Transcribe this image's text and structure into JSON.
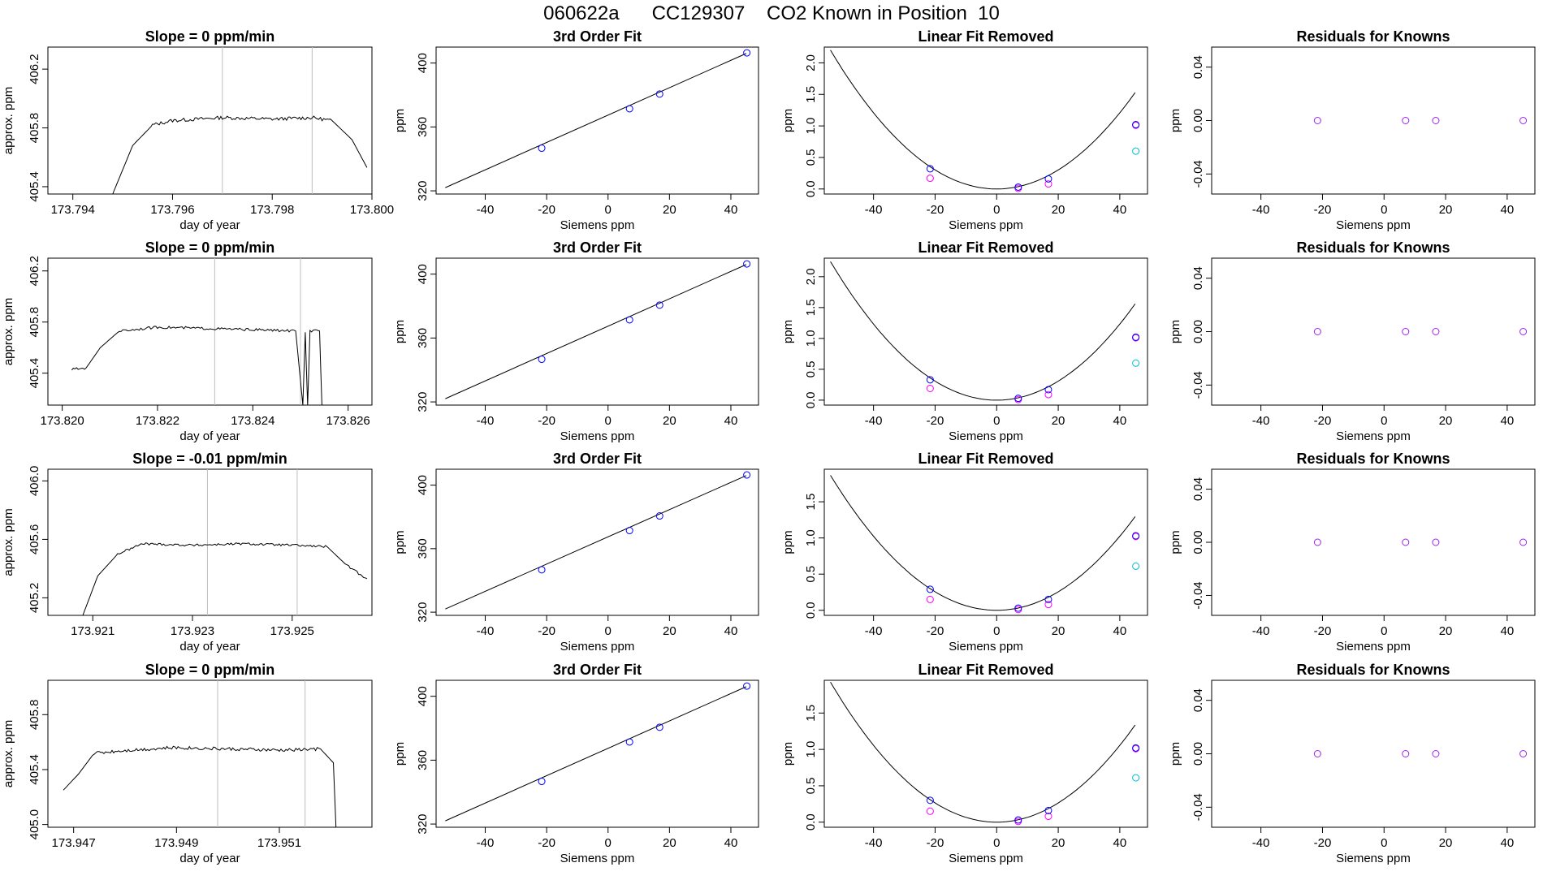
{
  "page": {
    "title": "060622a      CC129307    CO2 Known in Position  10"
  },
  "colors": {
    "line": "#000000",
    "window_line": "#bebebe",
    "fit_point": "#0000ff",
    "known_magenta": "#ff00ff",
    "residual_point": "#a020f0",
    "extra_cyan": "#00bfd8"
  },
  "chart_data": [
    {
      "type": "line",
      "row": 0,
      "col": 0,
      "title": "Slope =  0  ppm/min",
      "xlabel": "day of year",
      "ylabel": "approx. ppm",
      "xlim": [
        173.7935,
        173.8
      ],
      "ylim": [
        405.35,
        406.35
      ],
      "xticks": [
        173.794,
        173.796,
        173.798,
        173.8
      ],
      "xtick_labels": [
        "173.794",
        "173.796",
        "173.798",
        "173.800"
      ],
      "yticks": [
        405.4,
        405.8,
        406.2
      ],
      "ytick_labels": [
        "405.4",
        "405.8",
        "406.2"
      ],
      "vlines": [
        173.797,
        173.7988
      ],
      "trace": [
        [
          173.7948,
          405.35
        ],
        [
          173.7952,
          405.68
        ],
        [
          173.7956,
          405.82
        ],
        [
          173.796,
          405.85
        ],
        [
          173.797,
          405.87
        ],
        [
          173.798,
          405.86
        ],
        [
          173.7988,
          405.87
        ],
        [
          173.7992,
          405.85
        ],
        [
          173.7996,
          405.72
        ],
        [
          173.7999,
          405.53
        ]
      ],
      "noise": 0.012
    },
    {
      "type": "scatter",
      "row": 0,
      "col": 1,
      "title": "3rd Order Fit",
      "xlabel": "Siemens ppm",
      "ylabel": "ppm",
      "xlim": [
        -56,
        49
      ],
      "ylim": [
        318,
        410
      ],
      "xticks": [
        -40,
        -20,
        0,
        20,
        40
      ],
      "xtick_labels": [
        "-40",
        "-20",
        "0",
        "20",
        "40"
      ],
      "yticks": [
        320,
        360,
        400
      ],
      "ytick_labels": [
        "320",
        "360",
        "400"
      ],
      "curve": [
        [
          -53,
          322
        ],
        [
          45,
          406
        ]
      ],
      "points": [
        [
          -21.6,
          346.7
        ],
        [
          7,
          371.4
        ],
        [
          16.8,
          380.6
        ],
        [
          45.2,
          406.4
        ]
      ]
    },
    {
      "type": "scatter",
      "row": 0,
      "col": 2,
      "title": "Linear Fit Removed",
      "xlabel": "Siemens ppm",
      "ylabel": "ppm",
      "xlim": [
        -56,
        49
      ],
      "ylim": [
        -0.08,
        2.25
      ],
      "xticks": [
        -40,
        -20,
        0,
        20,
        40
      ],
      "xtick_labels": [
        "-40",
        "-20",
        "0",
        "20",
        "40"
      ],
      "yticks": [
        0,
        0.5,
        1,
        1.5,
        2
      ],
      "ytick_labels": [
        "0.0",
        "0.5",
        "1.0",
        "1.5",
        "2.0"
      ],
      "curve_coef": [
        0.000755,
        0.0,
        0.0
      ],
      "curve_range": [
        -54,
        45.5
      ],
      "points": [
        [
          -21.6,
          0.32
        ],
        [
          7,
          0.03
        ],
        [
          16.8,
          0.16
        ],
        [
          45.2,
          1.02
        ]
      ],
      "magenta_points": [
        [
          -21.6,
          0.17
        ],
        [
          7,
          0.01
        ],
        [
          16.8,
          0.08
        ],
        [
          45.2,
          1.01
        ]
      ],
      "cyan_points": [
        [
          45.2,
          0.6
        ]
      ]
    },
    {
      "type": "scatter",
      "row": 0,
      "col": 3,
      "title": "Residuals for Knowns",
      "xlabel": "Siemens ppm",
      "ylabel": "ppm",
      "xlim": [
        -56,
        49
      ],
      "ylim": [
        -0.055,
        0.055
      ],
      "xticks": [
        -40,
        -20,
        0,
        20,
        40
      ],
      "xtick_labels": [
        "-40",
        "-20",
        "0",
        "20",
        "40"
      ],
      "yticks": [
        -0.04,
        0,
        0.04
      ],
      "ytick_labels": [
        "-0.04",
        "0.00",
        "0.04"
      ],
      "points": [
        [
          -21.6,
          0
        ],
        [
          7,
          0
        ],
        [
          16.8,
          0
        ],
        [
          45.2,
          0
        ]
      ]
    },
    {
      "type": "line",
      "row": 1,
      "col": 0,
      "title": "Slope =  0  ppm/min",
      "xlabel": "day of year",
      "ylabel": "approx. ppm",
      "xlim": [
        173.8197,
        173.8265
      ],
      "ylim": [
        405.15,
        406.3
      ],
      "xticks": [
        173.82,
        173.822,
        173.824,
        173.826
      ],
      "xtick_labels": [
        "173.820",
        "173.822",
        "173.824",
        "173.826"
      ],
      "yticks": [
        405.4,
        405.8,
        406.2
      ],
      "ytick_labels": [
        "405.4",
        "405.8",
        "406.2"
      ],
      "vlines": [
        173.8232,
        173.825
      ],
      "trace": [
        [
          173.8202,
          405.43
        ],
        [
          173.8205,
          405.44
        ],
        [
          173.8208,
          405.6
        ],
        [
          173.8212,
          405.73
        ],
        [
          173.822,
          405.76
        ],
        [
          173.823,
          405.75
        ],
        [
          173.824,
          405.74
        ],
        [
          173.8249,
          405.73
        ],
        [
          173.82505,
          405.15
        ],
        [
          173.8251,
          405.72
        ],
        [
          173.82515,
          405.15
        ],
        [
          173.8252,
          405.73
        ],
        [
          173.8254,
          405.73
        ],
        [
          173.82545,
          405.15
        ]
      ],
      "noise": 0.01
    },
    {
      "type": "scatter",
      "row": 1,
      "col": 1,
      "title": "3rd Order Fit",
      "xlabel": "Siemens ppm",
      "ylabel": "ppm",
      "xlim": [
        -56,
        49
      ],
      "ylim": [
        318,
        410
      ],
      "xticks": [
        -40,
        -20,
        0,
        20,
        40
      ],
      "xtick_labels": [
        "-40",
        "-20",
        "0",
        "20",
        "40"
      ],
      "yticks": [
        320,
        360,
        400
      ],
      "ytick_labels": [
        "320",
        "360",
        "400"
      ],
      "curve": [
        [
          -53,
          322
        ],
        [
          45,
          406
        ]
      ],
      "points": [
        [
          -21.6,
          346.7
        ],
        [
          7,
          371.4
        ],
        [
          16.8,
          380.6
        ],
        [
          45.2,
          406.4
        ]
      ]
    },
    {
      "type": "scatter",
      "row": 1,
      "col": 2,
      "title": "Linear Fit Removed",
      "xlabel": "Siemens ppm",
      "ylabel": "ppm",
      "xlim": [
        -56,
        49
      ],
      "ylim": [
        -0.08,
        2.3
      ],
      "xticks": [
        -40,
        -20,
        0,
        20,
        40
      ],
      "xtick_labels": [
        "-40",
        "-20",
        "0",
        "20",
        "40"
      ],
      "yticks": [
        0,
        0.5,
        1,
        1.5,
        2
      ],
      "ytick_labels": [
        "0.0",
        "0.5",
        "1.0",
        "1.5",
        "2.0"
      ],
      "curve_coef": [
        0.00077,
        0.0,
        0.0
      ],
      "curve_range": [
        -54,
        45.5
      ],
      "points": [
        [
          -21.6,
          0.33
        ],
        [
          7,
          0.03
        ],
        [
          16.8,
          0.17
        ],
        [
          45.2,
          1.02
        ]
      ],
      "magenta_points": [
        [
          -21.6,
          0.19
        ],
        [
          7,
          0.01
        ],
        [
          16.8,
          0.09
        ],
        [
          45.2,
          1.01
        ]
      ],
      "cyan_points": [
        [
          45.2,
          0.6
        ]
      ]
    },
    {
      "type": "scatter",
      "row": 1,
      "col": 3,
      "title": "Residuals for Knowns",
      "xlabel": "Siemens ppm",
      "ylabel": "ppm",
      "xlim": [
        -56,
        49
      ],
      "ylim": [
        -0.055,
        0.055
      ],
      "xticks": [
        -40,
        -20,
        0,
        20,
        40
      ],
      "xtick_labels": [
        "-40",
        "-20",
        "0",
        "20",
        "40"
      ],
      "yticks": [
        -0.04,
        0,
        0.04
      ],
      "ytick_labels": [
        "-0.04",
        "0.00",
        "0.04"
      ],
      "points": [
        [
          -21.6,
          0
        ],
        [
          7,
          0
        ],
        [
          16.8,
          0
        ],
        [
          45.2,
          0
        ]
      ]
    },
    {
      "type": "line",
      "row": 2,
      "col": 0,
      "title": "Slope =  -0.01  ppm/min",
      "xlabel": "day of year",
      "ylabel": "approx. ppm",
      "xlim": [
        173.9201,
        173.9266
      ],
      "ylim": [
        405.08,
        406.08
      ],
      "xticks": [
        173.921,
        173.923,
        173.925
      ],
      "xtick_labels": [
        "173.921",
        "173.923",
        "173.925"
      ],
      "yticks": [
        405.2,
        405.6,
        406.0
      ],
      "ytick_labels": [
        "405.2",
        "405.6",
        "406.0"
      ],
      "vlines": [
        173.9233,
        173.9251
      ],
      "trace": [
        [
          173.9208,
          405.08
        ],
        [
          173.9211,
          405.35
        ],
        [
          173.9215,
          405.5
        ],
        [
          173.922,
          405.57
        ],
        [
          173.923,
          405.56
        ],
        [
          173.924,
          405.57
        ],
        [
          173.925,
          405.56
        ],
        [
          173.9257,
          405.55
        ],
        [
          173.9261,
          405.42
        ],
        [
          173.9265,
          405.33
        ]
      ],
      "noise": 0.008
    },
    {
      "type": "scatter",
      "row": 2,
      "col": 1,
      "title": "3rd Order Fit",
      "xlabel": "Siemens ppm",
      "ylabel": "ppm",
      "xlim": [
        -56,
        49
      ],
      "ylim": [
        318,
        410
      ],
      "xticks": [
        -40,
        -20,
        0,
        20,
        40
      ],
      "xtick_labels": [
        "-40",
        "-20",
        "0",
        "20",
        "40"
      ],
      "yticks": [
        320,
        360,
        400
      ],
      "ytick_labels": [
        "320",
        "360",
        "400"
      ],
      "curve": [
        [
          -53,
          322
        ],
        [
          45,
          406
        ]
      ],
      "points": [
        [
          -21.6,
          346.7
        ],
        [
          7,
          371.4
        ],
        [
          16.8,
          380.6
        ],
        [
          45.2,
          406.4
        ]
      ]
    },
    {
      "type": "scatter",
      "row": 2,
      "col": 2,
      "title": "Linear Fit Removed",
      "xlabel": "Siemens ppm",
      "ylabel": "ppm",
      "xlim": [
        -56,
        49
      ],
      "ylim": [
        -0.07,
        1.95
      ],
      "xticks": [
        -40,
        -20,
        0,
        20,
        40
      ],
      "xtick_labels": [
        "-40",
        "-20",
        "0",
        "20",
        "40"
      ],
      "yticks": [
        0,
        0.5,
        1,
        1.5
      ],
      "ytick_labels": [
        "0.0",
        "0.5",
        "1.0",
        "1.5"
      ],
      "curve_coef": [
        0.00064,
        0.0,
        0.0
      ],
      "curve_range": [
        -54,
        45.5
      ],
      "points": [
        [
          -21.6,
          0.29
        ],
        [
          7,
          0.03
        ],
        [
          16.8,
          0.15
        ],
        [
          45.2,
          1.03
        ]
      ],
      "magenta_points": [
        [
          -21.6,
          0.15
        ],
        [
          7,
          0.01
        ],
        [
          16.8,
          0.08
        ],
        [
          45.2,
          1.02
        ]
      ],
      "cyan_points": [
        [
          45.2,
          0.61
        ]
      ]
    },
    {
      "type": "scatter",
      "row": 2,
      "col": 3,
      "title": "Residuals for Knowns",
      "xlabel": "Siemens ppm",
      "ylabel": "ppm",
      "xlim": [
        -56,
        49
      ],
      "ylim": [
        -0.055,
        0.055
      ],
      "xticks": [
        -40,
        -20,
        0,
        20,
        40
      ],
      "xtick_labels": [
        "-40",
        "-20",
        "0",
        "20",
        "40"
      ],
      "yticks": [
        -0.04,
        0,
        0.04
      ],
      "ytick_labels": [
        "-0.04",
        "0.00",
        "0.04"
      ],
      "points": [
        [
          -21.6,
          0
        ],
        [
          7,
          0
        ],
        [
          16.8,
          0
        ],
        [
          45.2,
          0
        ]
      ]
    },
    {
      "type": "line",
      "row": 3,
      "col": 0,
      "title": "Slope =  0  ppm/min",
      "xlabel": "day of year",
      "ylabel": "approx. ppm",
      "xlim": [
        173.9465,
        173.9528
      ],
      "ylim": [
        404.98,
        406.05
      ],
      "xticks": [
        173.947,
        173.949,
        173.951
      ],
      "xtick_labels": [
        "173.947",
        "173.949",
        "173.951"
      ],
      "yticks": [
        405.0,
        405.4,
        405.8
      ],
      "ytick_labels": [
        "405.0",
        "405.4",
        "405.8"
      ],
      "vlines": [
        173.9498,
        173.9515
      ],
      "trace": [
        [
          173.9468,
          405.25
        ],
        [
          173.9471,
          405.37
        ],
        [
          173.9474,
          405.52
        ],
        [
          173.948,
          405.54
        ],
        [
          173.949,
          405.56
        ],
        [
          173.95,
          405.55
        ],
        [
          173.951,
          405.54
        ],
        [
          173.9518,
          405.55
        ],
        [
          173.95205,
          405.45
        ],
        [
          173.9521,
          404.98
        ]
      ],
      "noise": 0.012
    },
    {
      "type": "scatter",
      "row": 3,
      "col": 1,
      "title": "3rd Order Fit",
      "xlabel": "Siemens ppm",
      "ylabel": "ppm",
      "xlim": [
        -56,
        49
      ],
      "ylim": [
        318,
        410
      ],
      "xticks": [
        -40,
        -20,
        0,
        20,
        40
      ],
      "xtick_labels": [
        "-40",
        "-20",
        "0",
        "20",
        "40"
      ],
      "yticks": [
        320,
        360,
        400
      ],
      "ytick_labels": [
        "320",
        "360",
        "400"
      ],
      "curve": [
        [
          -53,
          322
        ],
        [
          45,
          406
        ]
      ],
      "points": [
        [
          -21.6,
          346.7
        ],
        [
          7,
          371.4
        ],
        [
          16.8,
          380.6
        ],
        [
          45.2,
          406.4
        ]
      ]
    },
    {
      "type": "scatter",
      "row": 3,
      "col": 2,
      "title": "Linear Fit Removed",
      "xlabel": "Siemens ppm",
      "ylabel": "ppm",
      "xlim": [
        -56,
        49
      ],
      "ylim": [
        -0.07,
        1.95
      ],
      "xticks": [
        -40,
        -20,
        0,
        20,
        40
      ],
      "xtick_labels": [
        "-40",
        "-20",
        "0",
        "20",
        "40"
      ],
      "yticks": [
        0,
        0.5,
        1,
        1.5
      ],
      "ytick_labels": [
        "0.0",
        "0.5",
        "1.0",
        "1.5"
      ],
      "curve_coef": [
        0.00066,
        0.0,
        0.0
      ],
      "curve_range": [
        -54,
        45.5
      ],
      "points": [
        [
          -21.6,
          0.3
        ],
        [
          7,
          0.03
        ],
        [
          16.8,
          0.16
        ],
        [
          45.2,
          1.02
        ]
      ],
      "magenta_points": [
        [
          -21.6,
          0.15
        ],
        [
          7,
          0.01
        ],
        [
          16.8,
          0.08
        ],
        [
          45.2,
          1.01
        ]
      ],
      "cyan_points": [
        [
          45.2,
          0.61
        ]
      ]
    },
    {
      "type": "scatter",
      "row": 3,
      "col": 3,
      "title": "Residuals for Knowns",
      "xlabel": "Siemens ppm",
      "ylabel": "ppm",
      "xlim": [
        -56,
        49
      ],
      "ylim": [
        -0.055,
        0.055
      ],
      "xticks": [
        -40,
        -20,
        0,
        20,
        40
      ],
      "xtick_labels": [
        "-40",
        "-20",
        "0",
        "20",
        "40"
      ],
      "yticks": [
        -0.04,
        0,
        0.04
      ],
      "ytick_labels": [
        "-0.04",
        "0.00",
        "0.04"
      ],
      "points": [
        [
          -21.6,
          0
        ],
        [
          7,
          0
        ],
        [
          16.8,
          0
        ],
        [
          45.2,
          0
        ]
      ]
    }
  ]
}
